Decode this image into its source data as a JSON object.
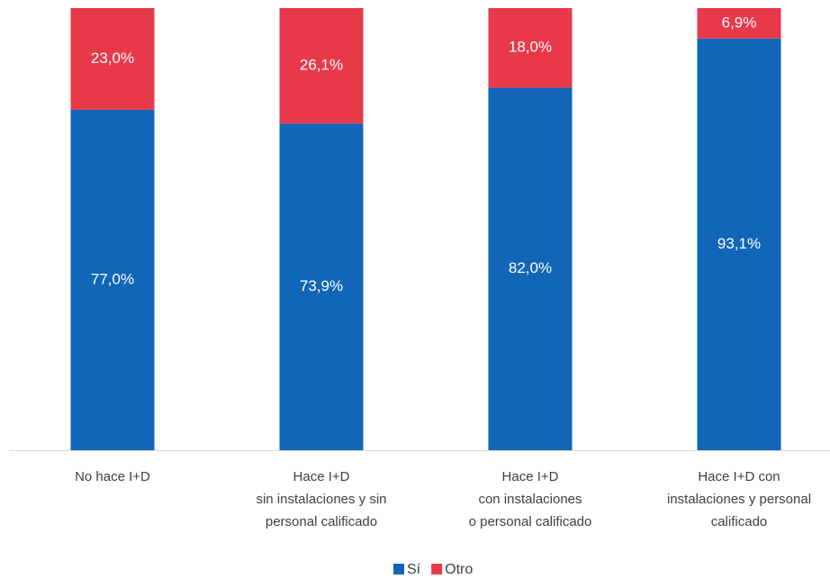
{
  "chart_data": {
    "type": "stacked_bar",
    "categories": [
      [
        "No hace I+D"
      ],
      [
        "Hace I+D",
        "sin instalaciones y sin",
        "personal calificado"
      ],
      [
        "Hace I+D",
        "con instalaciones",
        "o personal calificado"
      ],
      [
        "Hace I+D con",
        "instalaciones y personal",
        "calificado"
      ]
    ],
    "series": [
      {
        "name": "Sí",
        "color": "#1166b8",
        "values": [
          77.0,
          73.9,
          82.0,
          93.1
        ],
        "value_labels": [
          "77,0%",
          "73,9%",
          "82,0%",
          "93,1%"
        ]
      },
      {
        "name": "Otro",
        "color": "#e8394a",
        "values": [
          23.0,
          26.1,
          18.0,
          6.9
        ],
        "value_labels": [
          "23,0%",
          "26,1%",
          "18,0%",
          "6,9%"
        ]
      }
    ],
    "ylim": [
      0,
      100
    ]
  }
}
